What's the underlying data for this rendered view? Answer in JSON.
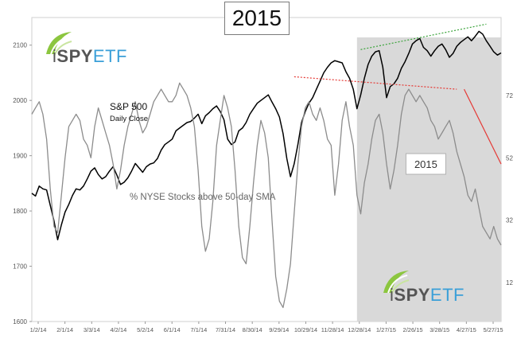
{
  "chart_data": {
    "type": "line",
    "title": "2015",
    "shaded_region_label": "2015",
    "x_tick_labels": [
      "1/2/14",
      "2/1/14",
      "3/3/14",
      "4/2/14",
      "5/2/14",
      "6/1/14",
      "7/1/14",
      "7/31/14",
      "8/30/14",
      "9/29/14",
      "10/29/14",
      "11/28/14",
      "12/28/14",
      "1/27/15",
      "2/26/15",
      "3/28/15",
      "4/27/15",
      "5/27/15"
    ],
    "y_left_ticks": [
      1600,
      1700,
      1800,
      1900,
      2000,
      2100
    ],
    "y_left_range": [
      1600,
      2150
    ],
    "y_right_ticks": [
      12,
      32,
      52,
      72
    ],
    "y_right_range": [
      -0.5,
      97
    ],
    "series": [
      {
        "name": "S&P 500",
        "subtitle": "Daily Close",
        "axis": "left",
        "color": "#000000",
        "values": [
          1832,
          1827,
          1845,
          1840,
          1838,
          1810,
          1782,
          1748,
          1775,
          1798,
          1812,
          1828,
          1840,
          1838,
          1845,
          1858,
          1872,
          1878,
          1866,
          1858,
          1862,
          1872,
          1880,
          1865,
          1848,
          1852,
          1860,
          1872,
          1886,
          1878,
          1870,
          1880,
          1885,
          1887,
          1895,
          1910,
          1920,
          1925,
          1930,
          1945,
          1950,
          1955,
          1960,
          1962,
          1968,
          1975,
          1958,
          1972,
          1978,
          1985,
          1990,
          1980,
          1965,
          1930,
          1920,
          1925,
          1945,
          1950,
          1960,
          1975,
          1985,
          1995,
          2000,
          2005,
          2010,
          1997,
          1985,
          1970,
          1940,
          1895,
          1862,
          1885,
          1920,
          1960,
          1980,
          1995,
          2005,
          2020,
          2035,
          2050,
          2060,
          2068,
          2072,
          2070,
          2068,
          2052,
          2040,
          2020,
          1985,
          2010,
          2040,
          2065,
          2080,
          2088,
          2090,
          2060,
          2005,
          2025,
          2030,
          2040,
          2058,
          2070,
          2085,
          2102,
          2108,
          2112,
          2096,
          2090,
          2080,
          2090,
          2098,
          2102,
          2092,
          2078,
          2085,
          2098,
          2105,
          2110,
          2115,
          2108,
          2116,
          2125,
          2120,
          2108,
          2098,
          2088,
          2082,
          2086
        ]
      },
      {
        "name": "% NYSE Stocks above 50-day SMA",
        "axis": "right",
        "color": "#8c8c8c",
        "values": [
          66,
          68,
          70,
          66,
          58,
          42,
          30,
          28,
          40,
          52,
          62,
          64,
          66,
          64,
          58,
          56,
          52,
          62,
          68,
          64,
          60,
          56,
          50,
          42,
          48,
          56,
          62,
          66,
          70,
          64,
          60,
          62,
          66,
          70,
          72,
          74,
          72,
          70,
          70,
          72,
          76,
          74,
          72,
          68,
          62,
          48,
          30,
          22,
          26,
          38,
          56,
          64,
          72,
          68,
          62,
          48,
          30,
          20,
          18,
          30,
          44,
          56,
          64,
          60,
          52,
          32,
          14,
          6,
          4,
          10,
          18,
          34,
          50,
          62,
          68,
          70,
          66,
          64,
          68,
          64,
          58,
          56,
          40,
          50,
          64,
          70,
          62,
          56,
          40,
          34,
          44,
          50,
          58,
          64,
          66,
          60,
          50,
          42,
          48,
          56,
          66,
          72,
          74,
          72,
          70,
          72,
          70,
          68,
          64,
          62,
          58,
          60,
          62,
          64,
          60,
          54,
          50,
          46,
          40,
          38,
          42,
          36,
          30,
          28,
          26,
          30,
          26,
          24
        ]
      }
    ],
    "annotations": [
      {
        "type": "trendline",
        "color": "#3aa33a",
        "style": "dotted",
        "axis": "left",
        "from": [
          89,
          2092
        ],
        "to": [
          123,
          2138
        ]
      },
      {
        "type": "trendline",
        "color": "#e53935",
        "style": "dotted",
        "axis": "right",
        "from": [
          71,
          78
        ],
        "to": [
          115,
          74
        ]
      },
      {
        "type": "trendline",
        "color": "#e53935",
        "style": "solid",
        "axis": "right",
        "from": [
          117,
          74
        ],
        "to": [
          127,
          50
        ]
      }
    ],
    "shaded_x_range": [
      88,
      127.5
    ],
    "grid": false
  },
  "logos": {
    "top": {
      "i": "i",
      "spy": "SPY",
      "etf": "ETF"
    },
    "bottom": {
      "i": "i",
      "spy": "SPY",
      "etf": "ETF"
    }
  },
  "colors": {
    "shade": "#d9d9d9",
    "axis": "#999999",
    "tick_text": "#555555",
    "logo_green": "#8cc63f",
    "logo_blue": "#3a9fd8"
  }
}
